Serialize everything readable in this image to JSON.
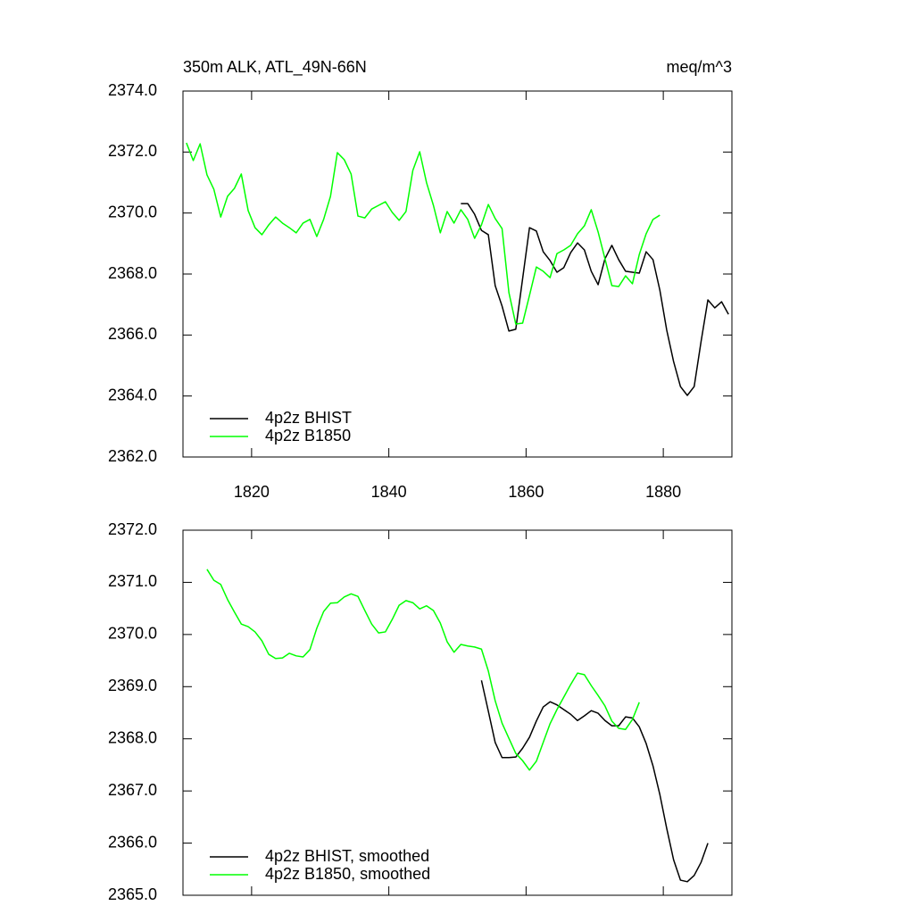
{
  "chart_data": [
    {
      "type": "line",
      "title": "350m ALK, ATL_49N-66N",
      "subtitle": "meq/m^3",
      "xlim": [
        1810,
        1890
      ],
      "xticks": [
        1820,
        1840,
        1860,
        1880
      ],
      "ylim": [
        2362,
        2374
      ],
      "yticks": [
        {
          "value": 2362,
          "label": "2362.0"
        },
        {
          "value": 2364,
          "label": "2364.0"
        },
        {
          "value": 2366,
          "label": "2366.0"
        },
        {
          "value": 2368,
          "label": "2368.0"
        },
        {
          "value": 2370,
          "label": "2370.0"
        },
        {
          "value": 2372,
          "label": "2372.0"
        },
        {
          "value": 2374,
          "label": "2374.0"
        }
      ],
      "legend": "lower left",
      "series": [
        {
          "name": "4p2z BHIST",
          "color": "#000000",
          "x": [
            1850.5,
            1851.5,
            1852.5,
            1853.5,
            1854.5,
            1855.5,
            1856.5,
            1857.5,
            1858.5,
            1859.5,
            1860.5,
            1861.5,
            1862.5,
            1863.5,
            1864.5,
            1865.5,
            1866.5,
            1867.5,
            1868.5,
            1869.5,
            1870.5,
            1871.5,
            1872.5,
            1873.5,
            1874.5,
            1875.5,
            1876.5,
            1877.5,
            1878.5,
            1879.5,
            1880.5,
            1881.5,
            1882.5,
            1883.5,
            1884.5,
            1885.5,
            1886.5,
            1887.5,
            1888.5,
            1889.5
          ],
          "values": [
            2370.31,
            2370.31,
            2369.96,
            2369.43,
            2369.29,
            2367.62,
            2366.95,
            2366.13,
            2366.19,
            2367.85,
            2369.52,
            2369.41,
            2368.73,
            2368.44,
            2368.06,
            2368.21,
            2368.7,
            2369.02,
            2368.79,
            2368.09,
            2367.65,
            2368.5,
            2368.94,
            2368.47,
            2368.09,
            2368.06,
            2368.03,
            2368.73,
            2368.47,
            2367.47,
            2366.16,
            2365.13,
            2364.31,
            2364.02,
            2364.31,
            2365.78,
            2367.15,
            2366.89,
            2367.09,
            2366.68
          ]
        },
        {
          "name": "4p2z B1850",
          "color": "#00ff00",
          "x": [
            1810.5,
            1811.5,
            1812.5,
            1813.5,
            1814.5,
            1815.5,
            1816.5,
            1817.5,
            1818.5,
            1819.5,
            1820.5,
            1821.5,
            1822.5,
            1823.5,
            1824.5,
            1825.5,
            1826.5,
            1827.5,
            1828.5,
            1829.5,
            1830.5,
            1831.5,
            1832.5,
            1833.5,
            1834.5,
            1835.5,
            1836.5,
            1837.5,
            1838.5,
            1839.5,
            1840.5,
            1841.5,
            1842.5,
            1843.5,
            1844.5,
            1845.5,
            1846.5,
            1847.5,
            1848.5,
            1849.5,
            1850.5,
            1851.5,
            1852.5,
            1853.5,
            1854.5,
            1855.5,
            1856.5,
            1857.5,
            1858.5,
            1859.5,
            1860.5,
            1861.5,
            1862.5,
            1863.5,
            1864.5,
            1865.5,
            1866.5,
            1867.5,
            1868.5,
            1869.5,
            1870.5,
            1871.5,
            1872.5,
            1873.5,
            1874.5,
            1875.5,
            1876.5,
            1877.5,
            1878.5,
            1879.5
          ],
          "values": [
            2372.3,
            2371.72,
            2372.27,
            2371.25,
            2370.78,
            2369.87,
            2370.55,
            2370.81,
            2371.28,
            2370.08,
            2369.52,
            2369.29,
            2369.61,
            2369.87,
            2369.67,
            2369.52,
            2369.35,
            2369.67,
            2369.79,
            2369.23,
            2369.79,
            2370.55,
            2371.98,
            2371.75,
            2371.28,
            2369.9,
            2369.84,
            2370.13,
            2370.25,
            2370.37,
            2370.02,
            2369.76,
            2370.05,
            2371.4,
            2372.01,
            2370.99,
            2370.25,
            2369.35,
            2370.05,
            2369.67,
            2370.11,
            2369.79,
            2369.17,
            2369.61,
            2370.28,
            2369.82,
            2369.49,
            2367.39,
            2366.36,
            2366.39,
            2367.3,
            2368.23,
            2368.09,
            2367.88,
            2368.67,
            2368.79,
            2368.94,
            2369.32,
            2369.58,
            2370.11,
            2369.38,
            2368.5,
            2367.62,
            2367.59,
            2367.94,
            2367.68,
            2368.64,
            2369.32,
            2369.79,
            2369.93
          ]
        }
      ]
    },
    {
      "type": "line",
      "xlim": [
        1810,
        1890
      ],
      "xticks": [
        1820,
        1840,
        1860,
        1880
      ],
      "xtick_labels": false,
      "ylim": [
        2365,
        2372
      ],
      "yticks": [
        {
          "value": 2365,
          "label": "2365.0"
        },
        {
          "value": 2366,
          "label": "2366.0"
        },
        {
          "value": 2367,
          "label": "2367.0"
        },
        {
          "value": 2368,
          "label": "2368.0"
        },
        {
          "value": 2369,
          "label": "2369.0"
        },
        {
          "value": 2370,
          "label": "2370.0"
        },
        {
          "value": 2371,
          "label": "2371.0"
        },
        {
          "value": 2372,
          "label": "2372.0"
        }
      ],
      "legend": "lower left",
      "series": [
        {
          "name": "4p2z BHIST, smoothed",
          "color": "#000000",
          "x": [
            1853.5,
            1854.5,
            1855.5,
            1856.5,
            1857.5,
            1858.5,
            1859.5,
            1860.5,
            1861.5,
            1862.5,
            1863.5,
            1864.5,
            1865.5,
            1866.5,
            1867.5,
            1868.5,
            1869.5,
            1870.5,
            1871.5,
            1872.5,
            1873.5,
            1874.5,
            1875.5,
            1876.5,
            1877.5,
            1878.5,
            1879.5,
            1880.5,
            1881.5,
            1882.5,
            1883.5,
            1884.5,
            1885.5,
            1886.5
          ],
          "values": [
            2369.12,
            2368.53,
            2367.93,
            2367.64,
            2367.64,
            2367.65,
            2367.82,
            2368.03,
            2368.34,
            2368.61,
            2368.71,
            2368.65,
            2368.56,
            2368.47,
            2368.35,
            2368.44,
            2368.54,
            2368.49,
            2368.35,
            2368.25,
            2368.25,
            2368.42,
            2368.4,
            2368.23,
            2367.91,
            2367.48,
            2366.93,
            2366.28,
            2365.68,
            2365.29,
            2365.26,
            2365.38,
            2365.63,
            2366.0
          ]
        },
        {
          "name": "4p2z B1850, smoothed",
          "color": "#00ff00",
          "x": [
            1813.5,
            1814.5,
            1815.5,
            1816.5,
            1817.5,
            1818.5,
            1819.5,
            1820.5,
            1821.5,
            1822.5,
            1823.5,
            1824.5,
            1825.5,
            1826.5,
            1827.5,
            1828.5,
            1829.5,
            1830.5,
            1831.5,
            1832.5,
            1833.5,
            1834.5,
            1835.5,
            1836.5,
            1837.5,
            1838.5,
            1839.5,
            1840.5,
            1841.5,
            1842.5,
            1843.5,
            1844.5,
            1845.5,
            1846.5,
            1847.5,
            1848.5,
            1849.5,
            1850.5,
            1851.5,
            1852.5,
            1853.5,
            1854.5,
            1855.5,
            1856.5,
            1857.5,
            1858.5,
            1859.5,
            1860.5,
            1861.5,
            1862.5,
            1863.5,
            1864.5,
            1865.5,
            1866.5,
            1867.5,
            1868.5,
            1869.5,
            1870.5,
            1871.5,
            1872.5,
            1873.5,
            1874.5,
            1875.5,
            1876.5
          ],
          "values": [
            2371.25,
            2371.04,
            2370.96,
            2370.67,
            2370.43,
            2370.2,
            2370.15,
            2370.05,
            2369.88,
            2369.62,
            2369.54,
            2369.55,
            2369.64,
            2369.59,
            2369.57,
            2369.71,
            2370.12,
            2370.44,
            2370.6,
            2370.61,
            2370.72,
            2370.78,
            2370.73,
            2370.46,
            2370.2,
            2370.03,
            2370.05,
            2370.29,
            2370.56,
            2370.65,
            2370.61,
            2370.49,
            2370.55,
            2370.46,
            2370.22,
            2369.86,
            2369.66,
            2369.81,
            2369.78,
            2369.76,
            2369.72,
            2369.3,
            2368.73,
            2368.3,
            2368.01,
            2367.72,
            2367.58,
            2367.4,
            2367.57,
            2367.93,
            2368.29,
            2368.56,
            2368.8,
            2369.04,
            2369.26,
            2369.23,
            2369.02,
            2368.83,
            2368.63,
            2368.34,
            2368.2,
            2368.18,
            2368.37,
            2368.7
          ]
        }
      ]
    }
  ]
}
